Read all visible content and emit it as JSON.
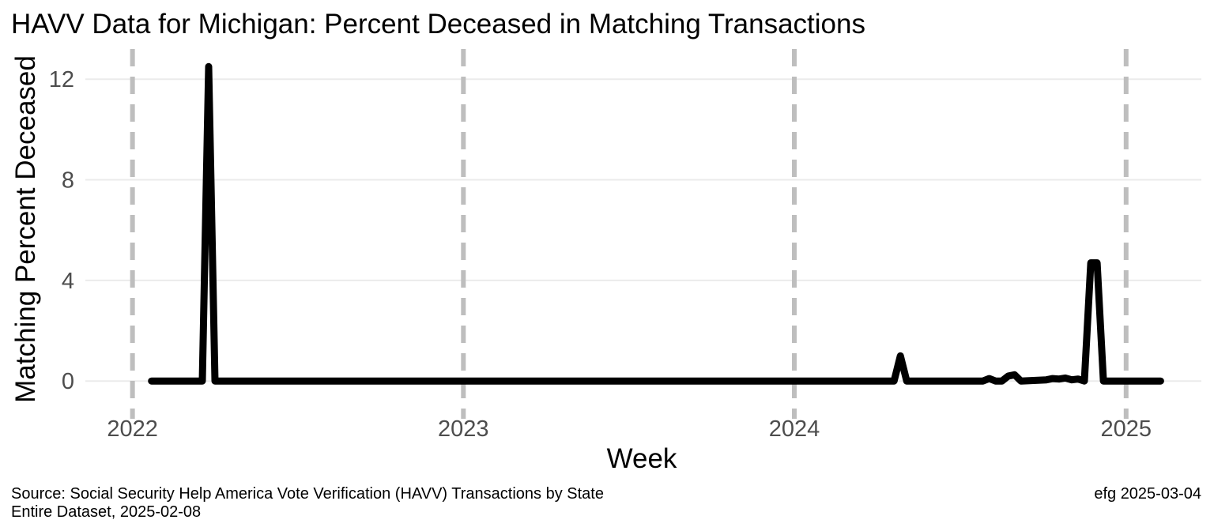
{
  "chart_data": {
    "type": "line",
    "title": "HAVV Data for Michigan:  Percent Deceased in Matching Transactions",
    "xlabel": "Week",
    "ylabel": "Matching Percent Deceased",
    "xlim": [
      "2021-11-10",
      "2025-03-25"
    ],
    "ylim": [
      -1.5,
      13.2
    ],
    "yticks": [
      0,
      4,
      8,
      12
    ],
    "ytick_labels": [
      "0",
      "4",
      "8",
      "12"
    ],
    "xticks": [
      "2022-01-01",
      "2023-01-01",
      "2024-01-01",
      "2025-01-01"
    ],
    "xtick_labels": [
      "2022",
      "2023",
      "2024",
      "2025"
    ],
    "year_lines": [
      "2022-01-01",
      "2023-01-01",
      "2024-01-01",
      "2025-01-01"
    ],
    "grid": "horizontal major gridlines; dashed gray vertical lines at each year start",
    "colors": {
      "line": "#000000",
      "grid": "#ebebeb",
      "year_line": "#bebebe",
      "tick_label": "#4d4d4d"
    },
    "series": [
      {
        "x": [
          "2022-01-22",
          "2022-03-19",
          "2022-03-26",
          "2022-04-02",
          "2024-04-20",
          "2024-04-27",
          "2024-05-04",
          "2024-07-27",
          "2024-08-03",
          "2024-08-10",
          "2024-08-17",
          "2024-08-24",
          "2024-08-31",
          "2024-09-07",
          "2024-10-05",
          "2024-10-12",
          "2024-10-19",
          "2024-10-26",
          "2024-11-02",
          "2024-11-09",
          "2024-11-16",
          "2024-11-23",
          "2024-11-30",
          "2024-12-07",
          "2025-02-08"
        ],
        "y": [
          0,
          0,
          12.5,
          0,
          0,
          1.0,
          0,
          0,
          0.1,
          0,
          0,
          0.2,
          0.25,
          0,
          0.05,
          0.1,
          0.08,
          0.12,
          0.05,
          0.08,
          0,
          4.7,
          4.7,
          0,
          0
        ]
      }
    ]
  },
  "caption": {
    "source_line1": "Source:  Social Security Help America Vote Verification (HAVV) Transactions by State",
    "source_line2": "Entire Dataset, 2025-02-08",
    "credit": "efg 2025-03-04"
  }
}
